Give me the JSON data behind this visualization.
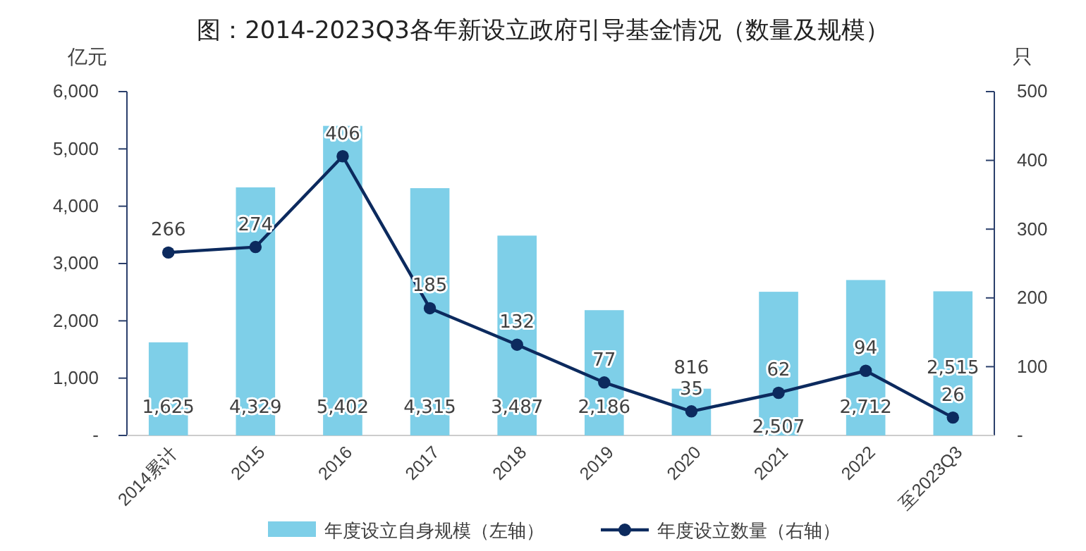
{
  "chart_data": {
    "type": "bar",
    "title": "图：2014-2023Q3各年新设立政府引导基金情况（数量及规模）",
    "ylabel": "亿元",
    "y2label": "只",
    "categories": [
      "2014累计",
      "2015",
      "2016",
      "2017",
      "2018",
      "2019",
      "2020",
      "2021",
      "2022",
      "至2023Q3"
    ],
    "series": [
      {
        "name": "年度设立自身规模（左轴）",
        "color": "#7ecfe8",
        "values": [
          1625,
          4329,
          5402,
          4315,
          3487,
          2186,
          816,
          2507,
          2712,
          2515
        ],
        "value_labels": [
          "1,625",
          "4,329",
          "5,402",
          "4,315",
          "3,487",
          "2,186",
          "816",
          "2,507",
          "2,712",
          "2,515"
        ]
      },
      {
        "name": "年度设立数量（右轴）",
        "type": "line",
        "axis": "y2",
        "color": "#0c2a5e",
        "marker": "circle",
        "values": [
          266,
          274,
          406,
          185,
          132,
          77,
          35,
          62,
          94,
          26
        ],
        "value_labels": [
          "266",
          "274",
          "406",
          "185",
          "132",
          "77",
          "35",
          "62",
          "94",
          "26"
        ]
      }
    ],
    "ylim": [
      0,
      6000
    ],
    "yticks": [
      {
        "value": 0,
        "label": "-"
      },
      {
        "value": 1000,
        "label": "1,000"
      },
      {
        "value": 2000,
        "label": "2,000"
      },
      {
        "value": 3000,
        "label": "3,000"
      },
      {
        "value": 4000,
        "label": "4,000"
      },
      {
        "value": 5000,
        "label": "5,000"
      },
      {
        "value": 6000,
        "label": "6,000"
      }
    ],
    "y2lim": [
      0,
      500
    ],
    "y2ticks": [
      {
        "value": 0,
        "label": "-"
      },
      100,
      200,
      300,
      400,
      500
    ],
    "grid": false,
    "legend": "bottom"
  }
}
